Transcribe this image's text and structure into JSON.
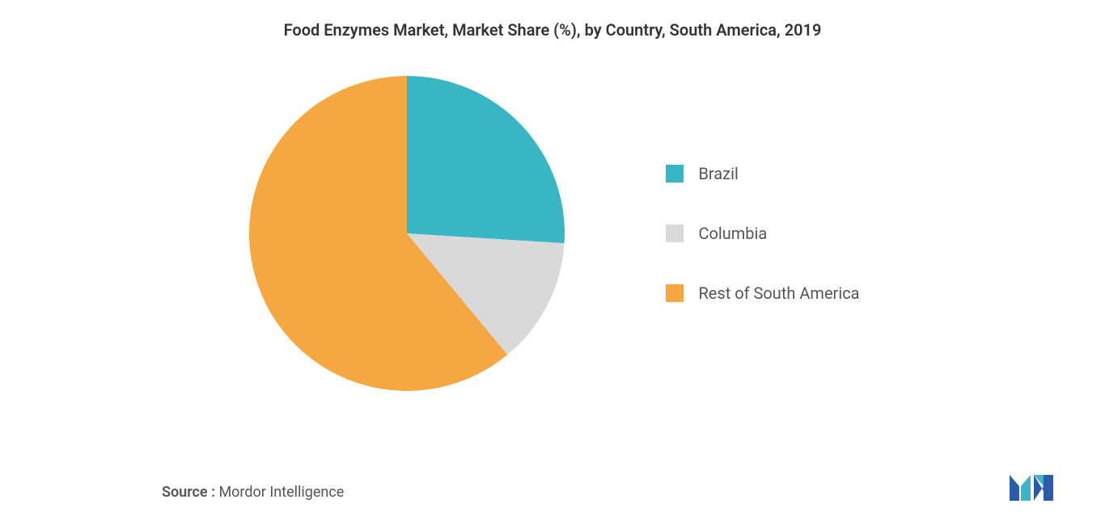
{
  "chart": {
    "type": "pie",
    "title": "Food Enzymes Market, Market Share (%), by Country, South America, 2019",
    "title_fontsize": 20,
    "title_color": "#333333",
    "background_color": "#ffffff",
    "slices": [
      {
        "label": "Brazil",
        "value": 26,
        "color": "#39b6c4",
        "start_angle": 0,
        "end_angle": 93.6
      },
      {
        "label": "Columbia",
        "value": 13,
        "color": "#d9d9d9",
        "start_angle": 93.6,
        "end_angle": 140.4
      },
      {
        "label": "Rest of South America",
        "value": 61,
        "color": "#f5a742",
        "start_angle": 140.4,
        "end_angle": 360
      }
    ],
    "legend": {
      "items": [
        {
          "label": "Brazil",
          "color": "#39b6c4"
        },
        {
          "label": "Columbia",
          "color": "#d9d9d9"
        },
        {
          "label": "Rest of South America",
          "color": "#f5a742"
        }
      ],
      "fontsize": 20,
      "label_color": "#555555"
    }
  },
  "source": {
    "label": "Source :",
    "text": "Mordor Intelligence",
    "fontsize": 18,
    "color": "#555555"
  },
  "logo": {
    "colors": [
      "#2a5caa",
      "#3fb4c5"
    ]
  }
}
